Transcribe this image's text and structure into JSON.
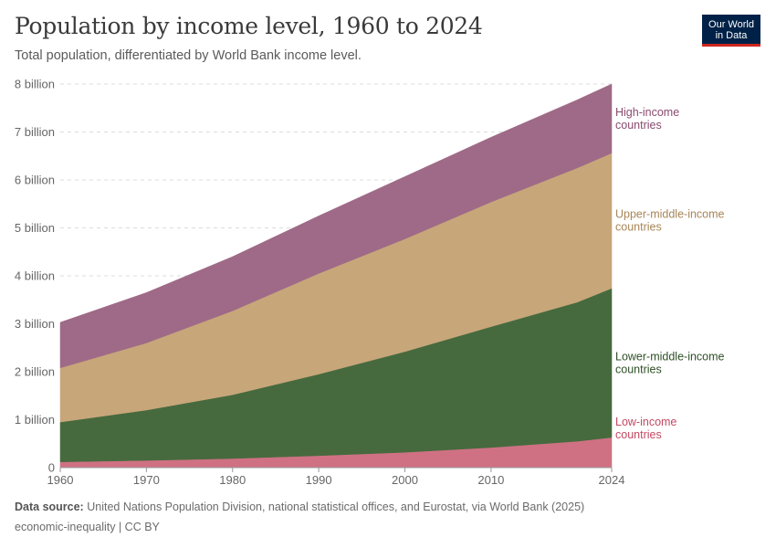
{
  "header": {
    "title": "Population by income level, 1960 to 2024",
    "subtitle": "Total population, differentiated by World Bank income level."
  },
  "logo": {
    "line1": "Our World",
    "line2": "in Data",
    "bg": "#002147",
    "accent": "#ce261e"
  },
  "footer": {
    "source_label": "Data source:",
    "source_text": "United Nations Population Division, national statistical offices, and Eurostat, via World Bank (2025)",
    "tags": "economic-inequality | CC BY"
  },
  "chart_data": {
    "type": "area",
    "stacked": true,
    "title": "Population by income level, 1960 to 2024",
    "subtitle": "Total population, differentiated by World Bank income level.",
    "xlabel": "",
    "ylabel": "",
    "x": [
      1960,
      1970,
      1980,
      1990,
      2000,
      2010,
      2020,
      2024
    ],
    "xticks": [
      "1960",
      "1970",
      "1980",
      "1990",
      "2000",
      "2010",
      "2024"
    ],
    "xtick_values": [
      1960,
      1970,
      1980,
      1990,
      2000,
      2010,
      2024
    ],
    "ylim": [
      0,
      8000000000
    ],
    "yticks": [
      {
        "value": 0,
        "label": "0"
      },
      {
        "value": 1000000000,
        "label": "1 billion"
      },
      {
        "value": 2000000000,
        "label": "2 billion"
      },
      {
        "value": 3000000000,
        "label": "3 billion"
      },
      {
        "value": 4000000000,
        "label": "4 billion"
      },
      {
        "value": 5000000000,
        "label": "5 billion"
      },
      {
        "value": 6000000000,
        "label": "6 billion"
      },
      {
        "value": 7000000000,
        "label": "7 billion"
      },
      {
        "value": 8000000000,
        "label": "8 billion"
      }
    ],
    "grid": "horizontal-dashed",
    "legend": "right-inline",
    "series": [
      {
        "name": "Low-income countries",
        "label_lines": [
          "Low-income",
          "countries"
        ],
        "color": "#cf7183",
        "label_color": "#c24963",
        "values": [
          120000000,
          150000000,
          190000000,
          250000000,
          320000000,
          420000000,
          550000000,
          630000000
        ]
      },
      {
        "name": "Lower-middle-income countries",
        "label_lines": [
          "Lower-middle-income",
          "countries"
        ],
        "color": "#466a3e",
        "label_color": "#2e4f26",
        "values": [
          830000000,
          1050000000,
          1330000000,
          1700000000,
          2100000000,
          2520000000,
          2900000000,
          3110000000
        ]
      },
      {
        "name": "Upper-middle-income countries",
        "label_lines": [
          "Upper-middle-income",
          "countries"
        ],
        "color": "#c7a67a",
        "label_color": "#a88557",
        "values": [
          1130000000,
          1400000000,
          1750000000,
          2100000000,
          2350000000,
          2600000000,
          2800000000,
          2820000000
        ]
      },
      {
        "name": "High-income countries",
        "label_lines": [
          "High-income",
          "countries"
        ],
        "color": "#9f6a87",
        "label_color": "#8a4a6f",
        "values": [
          950000000,
          1050000000,
          1130000000,
          1200000000,
          1300000000,
          1350000000,
          1420000000,
          1440000000
        ]
      }
    ]
  }
}
